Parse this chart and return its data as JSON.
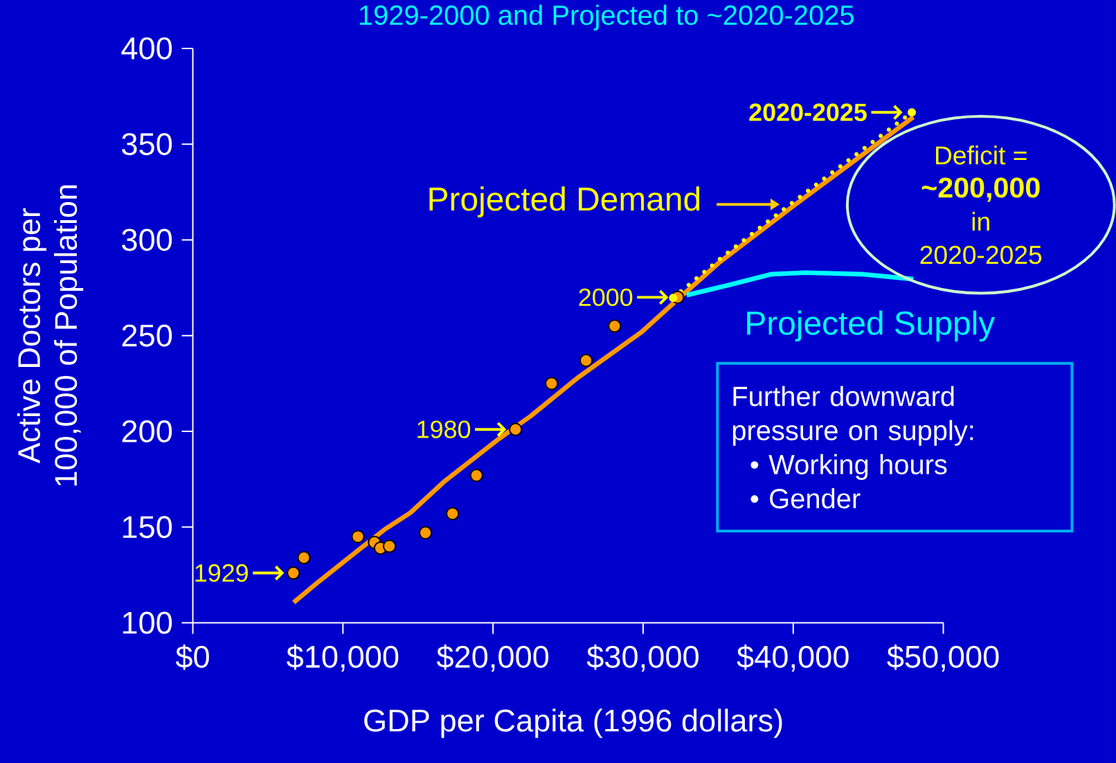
{
  "chart_data": {
    "type": "scatter",
    "title": "1929-2000 and Projected to ~2020-2025",
    "xlabel": "GDP per Capita (1996 dollars)",
    "ylabel": "Active Doctors per 100,000 of Population",
    "xlim": [
      0,
      50000
    ],
    "ylim": [
      100,
      400
    ],
    "xticks": [
      {
        "value": 0,
        "label": "$0"
      },
      {
        "value": 10000,
        "label": "$10,000"
      },
      {
        "value": 20000,
        "label": "$20,000"
      },
      {
        "value": 30000,
        "label": "$30,000"
      },
      {
        "value": 40000,
        "label": "$40,000"
      },
      {
        "value": 50000,
        "label": "$50,000"
      }
    ],
    "yticks": [
      100,
      150,
      200,
      250,
      300,
      350,
      400
    ],
    "series": [
      {
        "type": "scatter",
        "color": "#ff9900",
        "marker": "circle",
        "x": [
          6700,
          7400,
          11000,
          12100,
          12500,
          13100,
          15500,
          17300,
          18900,
          21500,
          23900,
          26200,
          28100,
          32300
        ],
        "values": [
          126,
          134,
          145,
          142,
          139,
          140,
          147,
          157,
          177,
          201,
          225,
          237,
          255,
          270
        ]
      },
      {
        "type": "line",
        "color": "#ff9900",
        "x": [
          6720,
          8370,
          10270,
          12810,
          14500,
          16800,
          20400,
          22500,
          25700,
          29900,
          32350,
          35000,
          40060,
          48000
        ],
        "values": [
          110.6,
          121.4,
          133.2,
          148.9,
          157.5,
          174.1,
          196.1,
          207.9,
          228.3,
          251.9,
          269.2,
          287.7,
          318.0,
          364.1
        ]
      },
      {
        "type": "line",
        "name": "Projected Demand",
        "color": "#ffff00",
        "line_style": "dotted",
        "x": [
          32000,
          35200,
          39700,
          47900
        ],
        "values": [
          269.7,
          290.6,
          318.0,
          366.6
        ]
      },
      {
        "type": "line",
        "name": "Projected Supply",
        "color": "#00ffff",
        "x": [
          32900,
          35600,
          38500,
          40800,
          44700,
          48000
        ],
        "values": [
          271.1,
          276.2,
          282.0,
          282.9,
          282.0,
          279.5
        ]
      }
    ],
    "annotations": [
      {
        "text": "1929",
        "x": 6700,
        "y": 126
      },
      {
        "text": "1980",
        "x": 21500,
        "y": 201
      },
      {
        "text": "2000",
        "x": 32300,
        "y": 270
      },
      {
        "text": "2020-2025",
        "x": 47900,
        "y": 366.6
      },
      "Deficit =",
      "~200,000",
      "in",
      "2020-2025",
      "Further downward pressure on supply:",
      "• Working hours",
      "• Gender"
    ]
  }
}
